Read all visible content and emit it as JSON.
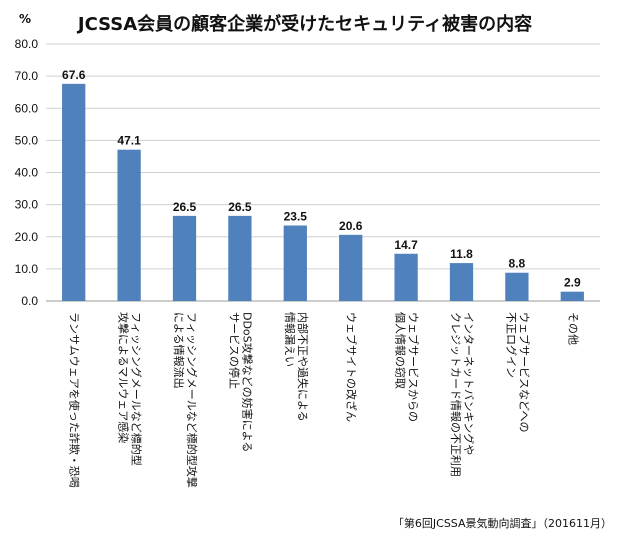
{
  "chart_data": {
    "type": "bar",
    "title": "JCSSA会員の顧客企業が受けたセキュリティ被害の内容",
    "ylabel": "%",
    "ylim": [
      0,
      80
    ],
    "yticks": [
      "0.0",
      "10.0",
      "20.0",
      "30.0",
      "40.0",
      "50.0",
      "60.0",
      "70.0",
      "80.0"
    ],
    "grid": true,
    "categories": [
      [
        "ランサムウェアを使った詐欺・恐喝"
      ],
      [
        "フィッシングメールなど標的型",
        "攻撃によるマルウェア感染"
      ],
      [
        "フィッシングメールなど標的型攻撃",
        "による情報流出"
      ],
      [
        "DDoS攻撃などの妨害による",
        "サービスの停止"
      ],
      [
        "内部不正や過失による",
        "情報漏えい"
      ],
      [
        "ウェブサイトの改ざん"
      ],
      [
        "ウェブサービスからの",
        "個人情報の窃取"
      ],
      [
        "インターネットバンキングや",
        "クレジットカード情報の不正利用"
      ],
      [
        "ウェブサービスなどへの",
        "不正ログイン"
      ],
      [
        "その他"
      ]
    ],
    "values": [
      67.6,
      47.1,
      26.5,
      26.5,
      23.5,
      20.6,
      14.7,
      11.8,
      8.8,
      2.9
    ],
    "value_labels": [
      "67.6",
      "47.1",
      "26.5",
      "26.5",
      "23.5",
      "20.6",
      "14.7",
      "11.8",
      "8.8",
      "2.9"
    ],
    "bar_color": "#4f81bd",
    "grid_color": "#d0d0d0",
    "source": "「第6回JCSSA景気動向調査」（201611月）"
  }
}
